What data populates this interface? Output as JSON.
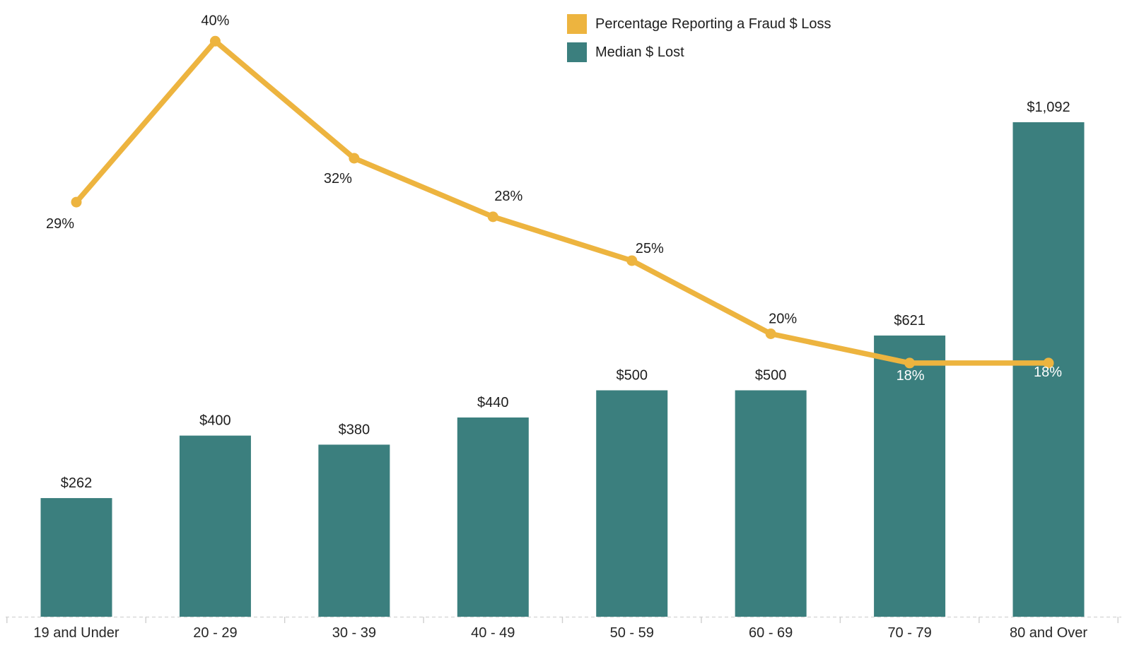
{
  "chart_data": {
    "type": "combo",
    "categories": [
      "19 and Under",
      "20 - 29",
      "30 - 39",
      "40 - 49",
      "50 - 59",
      "60 - 69",
      "70 - 79",
      "80 and Over"
    ],
    "series": [
      {
        "name": "Percentage Reporting a Fraud $ Loss",
        "type": "line",
        "color": "#EDB43F",
        "values": [
          29,
          40,
          32,
          28,
          25,
          20,
          18,
          18
        ],
        "labels": [
          "29%",
          "40%",
          "32%",
          "28%",
          "25%",
          "20%",
          "18%",
          "18%"
        ]
      },
      {
        "name": "Median $ Lost",
        "type": "bar",
        "color": "#3B7F7E",
        "values": [
          262,
          400,
          380,
          440,
          500,
          500,
          621,
          1092
        ],
        "labels": [
          "$262",
          "$400",
          "$380",
          "$440",
          "$500",
          "$500",
          "$621",
          "$1,092"
        ]
      }
    ],
    "legend_position": "top-center",
    "grid": false,
    "y_axis_visible": false,
    "x_axis_style": "dashed-baseline-with-ticks",
    "background_color": "#FFFFFF",
    "text_color": "#1E1E1E",
    "axis_line_color": "#D9D9D9"
  }
}
